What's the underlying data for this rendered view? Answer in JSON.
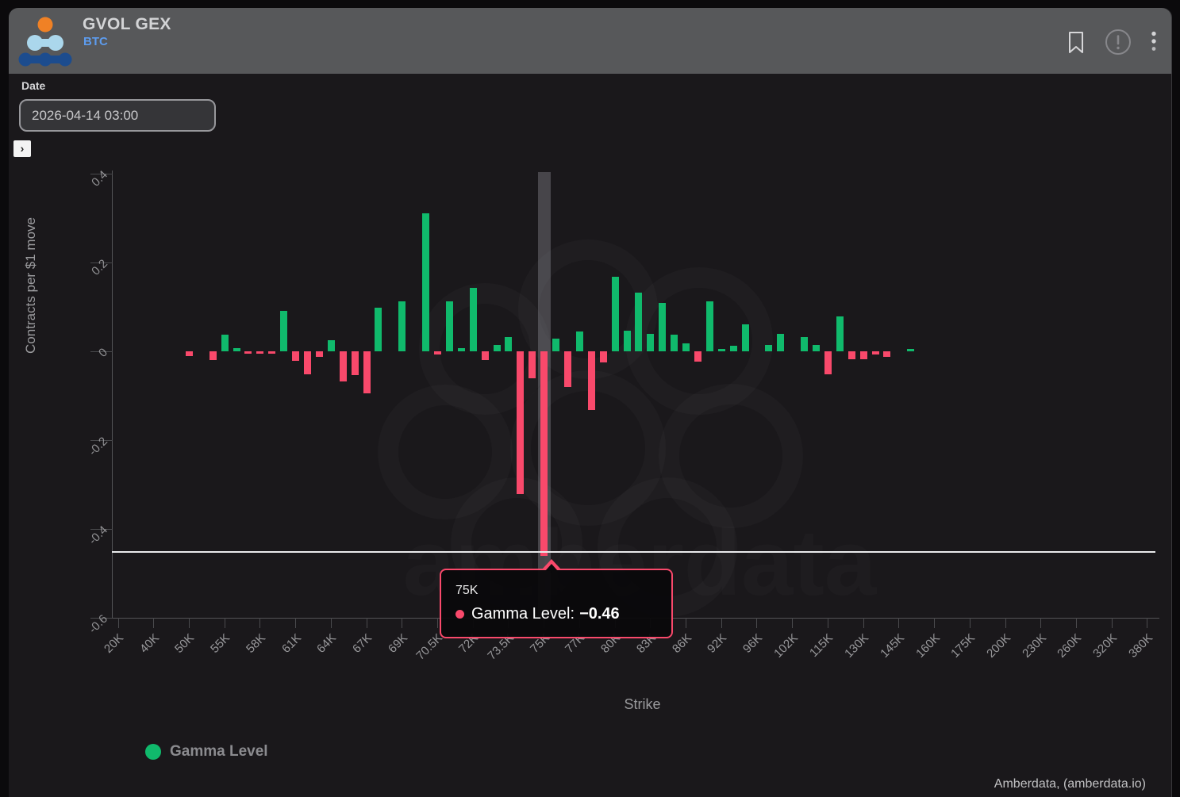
{
  "header": {
    "title": "GVOL GEX",
    "subtitle": "BTC",
    "icons": [
      "bookmark-icon",
      "alert-circle-icon",
      "kebab-menu-icon"
    ],
    "background": "#57585a",
    "subtitle_color": "#5d9cee"
  },
  "controls": {
    "date_label": "Date",
    "date_value": "2026-04-14 03:00",
    "expander_icon": "chevron-right-icon"
  },
  "chart_data": {
    "type": "bar",
    "xlabel": "Strike",
    "ylabel": "Contracts per $1 move",
    "ylim": [
      -0.6,
      0.4
    ],
    "y_ticks": [
      0.4,
      0.2,
      0,
      -0.2,
      -0.4,
      -0.6
    ],
    "grid": false,
    "series_name": "Gamma Level",
    "colors": {
      "positive": "#10ba6c",
      "negative": "#f9496b"
    },
    "crosshair_value": -0.45,
    "highlight": {
      "index": 36,
      "strike": "75K",
      "value": -0.46
    },
    "bars": [
      {
        "label": "20K",
        "value": 0
      },
      {
        "label": "",
        "value": 0
      },
      {
        "label": "",
        "value": 0
      },
      {
        "label": "40K",
        "value": 0
      },
      {
        "label": "",
        "value": 0
      },
      {
        "label": "",
        "value": 0
      },
      {
        "label": "50K",
        "value": -0.01
      },
      {
        "label": "",
        "value": 0
      },
      {
        "label": "",
        "value": -0.02
      },
      {
        "label": "55K",
        "value": 0.037
      },
      {
        "label": "",
        "value": 0.008
      },
      {
        "label": "",
        "value": -0.005
      },
      {
        "label": "58K",
        "value": -0.005
      },
      {
        "label": "",
        "value": -0.005
      },
      {
        "label": "",
        "value": 0.091
      },
      {
        "label": "61K",
        "value": -0.021
      },
      {
        "label": "",
        "value": -0.051
      },
      {
        "label": "",
        "value": -0.012
      },
      {
        "label": "64K",
        "value": 0.025
      },
      {
        "label": "",
        "value": -0.068
      },
      {
        "label": "",
        "value": -0.054
      },
      {
        "label": "67K",
        "value": -0.095
      },
      {
        "label": "",
        "value": 0.099
      },
      {
        "label": "",
        "value": 0
      },
      {
        "label": "69K",
        "value": 0.113
      },
      {
        "label": "",
        "value": 0
      },
      {
        "label": "",
        "value": 0.31
      },
      {
        "label": "70.5K",
        "value": -0.008
      },
      {
        "label": "",
        "value": 0.112
      },
      {
        "label": "",
        "value": 0.007
      },
      {
        "label": "72K",
        "value": 0.142
      },
      {
        "label": "",
        "value": -0.02
      },
      {
        "label": "",
        "value": 0.014
      },
      {
        "label": "73.5K",
        "value": 0.032
      },
      {
        "label": "",
        "value": -0.321
      },
      {
        "label": "",
        "value": -0.061
      },
      {
        "label": "75K",
        "value": -0.46
      },
      {
        "label": "",
        "value": 0.029
      },
      {
        "label": "",
        "value": -0.081
      },
      {
        "label": "77K",
        "value": 0.044
      },
      {
        "label": "",
        "value": -0.132
      },
      {
        "label": "",
        "value": -0.025
      },
      {
        "label": "80K",
        "value": 0.167
      },
      {
        "label": "",
        "value": 0.046
      },
      {
        "label": "",
        "value": 0.133
      },
      {
        "label": "83K",
        "value": 0.04
      },
      {
        "label": "",
        "value": 0.109
      },
      {
        "label": "",
        "value": 0.037
      },
      {
        "label": "86K",
        "value": 0.018
      },
      {
        "label": "",
        "value": -0.023
      },
      {
        "label": "",
        "value": 0.112
      },
      {
        "label": "92K",
        "value": 0.005
      },
      {
        "label": "",
        "value": 0.013
      },
      {
        "label": "",
        "value": 0.061
      },
      {
        "label": "96K",
        "value": 0
      },
      {
        "label": "",
        "value": 0.015
      },
      {
        "label": "",
        "value": 0.04
      },
      {
        "label": "102K",
        "value": 0
      },
      {
        "label": "",
        "value": 0.033
      },
      {
        "label": "",
        "value": 0.015
      },
      {
        "label": "115K",
        "value": -0.051
      },
      {
        "label": "",
        "value": 0.079
      },
      {
        "label": "",
        "value": -0.017
      },
      {
        "label": "130K",
        "value": -0.017
      },
      {
        "label": "",
        "value": -0.007
      },
      {
        "label": "",
        "value": -0.012
      },
      {
        "label": "145K",
        "value": 0
      },
      {
        "label": "",
        "value": 0.005
      },
      {
        "label": "",
        "value": 0
      },
      {
        "label": "160K",
        "value": 0
      },
      {
        "label": "",
        "value": 0
      },
      {
        "label": "",
        "value": 0
      },
      {
        "label": "175K",
        "value": 0
      },
      {
        "label": "",
        "value": 0
      },
      {
        "label": "",
        "value": 0
      },
      {
        "label": "200K",
        "value": 0
      },
      {
        "label": "",
        "value": 0
      },
      {
        "label": "",
        "value": 0
      },
      {
        "label": "230K",
        "value": 0
      },
      {
        "label": "",
        "value": 0
      },
      {
        "label": "",
        "value": 0
      },
      {
        "label": "260K",
        "value": 0
      },
      {
        "label": "",
        "value": 0
      },
      {
        "label": "",
        "value": 0
      },
      {
        "label": "320K",
        "value": 0
      },
      {
        "label": "",
        "value": 0
      },
      {
        "label": "",
        "value": 0
      },
      {
        "label": "380K",
        "value": 0
      }
    ]
  },
  "tooltip": {
    "strike": "75K",
    "series_label": "Gamma Level:",
    "value_text": "−0.46"
  },
  "legend": {
    "label": "Gamma Level",
    "color": "#10b96c"
  },
  "footer": {
    "attribution": "Amberdata, (amberdata.io)"
  }
}
